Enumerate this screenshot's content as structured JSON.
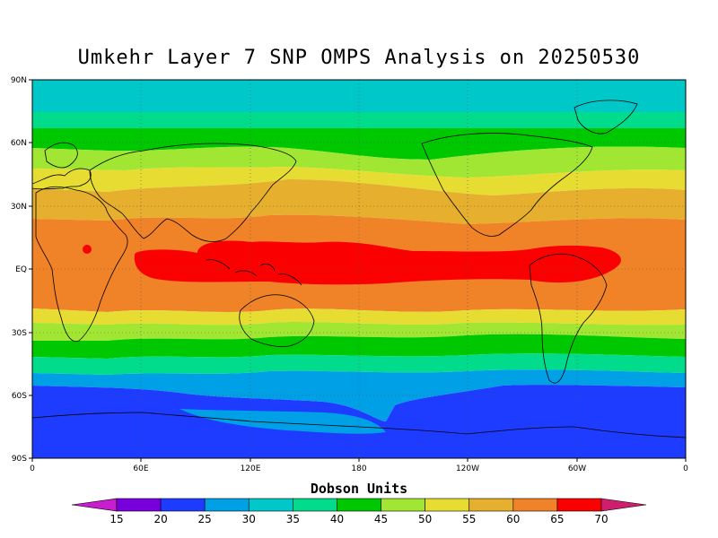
{
  "title": "Umkehr Layer 7 SNP OMPS Analysis on 20250530",
  "y_ticks": [
    "90N",
    "60N",
    "30N",
    "EQ",
    "30S",
    "60S",
    "90S"
  ],
  "x_ticks": [
    "0",
    "60E",
    "120E",
    "180",
    "120W",
    "60W",
    "0"
  ],
  "colorbar": {
    "title": "Dobson Units",
    "labels": [
      "15",
      "20",
      "25",
      "30",
      "35",
      "40",
      "45",
      "50",
      "55",
      "60",
      "65",
      "70"
    ],
    "colors": [
      "#c81ecf",
      "#7800dc",
      "#1e3cff",
      "#00a0e6",
      "#00c8c8",
      "#00dc8c",
      "#00c800",
      "#a0e632",
      "#e6dc32",
      "#e6af2d",
      "#f08228",
      "#fa0000",
      "#d01e6e"
    ]
  },
  "chart_data": {
    "type": "heatmap",
    "title": "Umkehr Layer 7 SNP OMPS Analysis on 20250530",
    "units": "Dobson Units",
    "xlim": [
      0,
      360
    ],
    "ylim": [
      -90,
      90
    ],
    "x_tick_labels": [
      "0",
      "60E",
      "120E",
      "180",
      "120W",
      "60W",
      "0"
    ],
    "y_tick_labels": [
      "90N",
      "60N",
      "30N",
      "EQ",
      "30S",
      "60S",
      "90S"
    ],
    "levels": [
      15,
      20,
      25,
      30,
      35,
      40,
      45,
      50,
      55,
      60,
      65,
      70
    ],
    "grid": true,
    "zonal_band_values": [
      {
        "lat": 85,
        "value": 32
      },
      {
        "lat": 70,
        "value": 35
      },
      {
        "lat": 62,
        "value": 41
      },
      {
        "lat": 52,
        "value": 48
      },
      {
        "lat": 42,
        "value": 53
      },
      {
        "lat": 30,
        "value": 58
      },
      {
        "lat": 15,
        "value": 62
      },
      {
        "lat": 0,
        "value": 66
      },
      {
        "lat": -15,
        "value": 62
      },
      {
        "lat": -25,
        "value": 56
      },
      {
        "lat": -33,
        "value": 48
      },
      {
        "lat": -40,
        "value": 43
      },
      {
        "lat": -47,
        "value": 37
      },
      {
        "lat": -55,
        "value": 30
      },
      {
        "lat": -70,
        "value": 22
      },
      {
        "lat": -85,
        "value": 22
      }
    ]
  }
}
